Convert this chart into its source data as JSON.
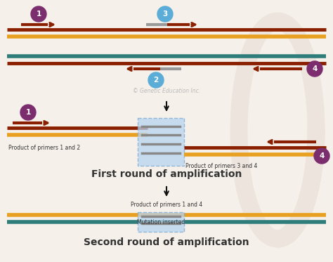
{
  "bg_color": "#f5f0ea",
  "dna_orange": "#E8A020",
  "dna_dark_red": "#8B2000",
  "dna_teal": "#2E7D7A",
  "primer_gray": "#999999",
  "primer_red": "#8B2000",
  "highlight_blue": "#B8D4F0",
  "highlight_blue_edge": "#7AAAD0",
  "circle_purple": "#7B2D6E",
  "circle_blue": "#5BACD6",
  "arrow_color": "#111111",
  "text_color": "#333333",
  "copyright_text": "© Genetic Education Inc.",
  "label1": "Product of primers 1 and 2",
  "label2": "Product of primers 3 and 4",
  "label3": "Product of primers 1 and 4",
  "label4": "Mutation inserted",
  "label5": "First round of amplification",
  "label6": "Second round of amplification"
}
